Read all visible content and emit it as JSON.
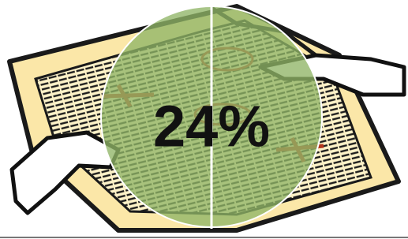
{
  "callout": {
    "text": "24%"
  }
}
